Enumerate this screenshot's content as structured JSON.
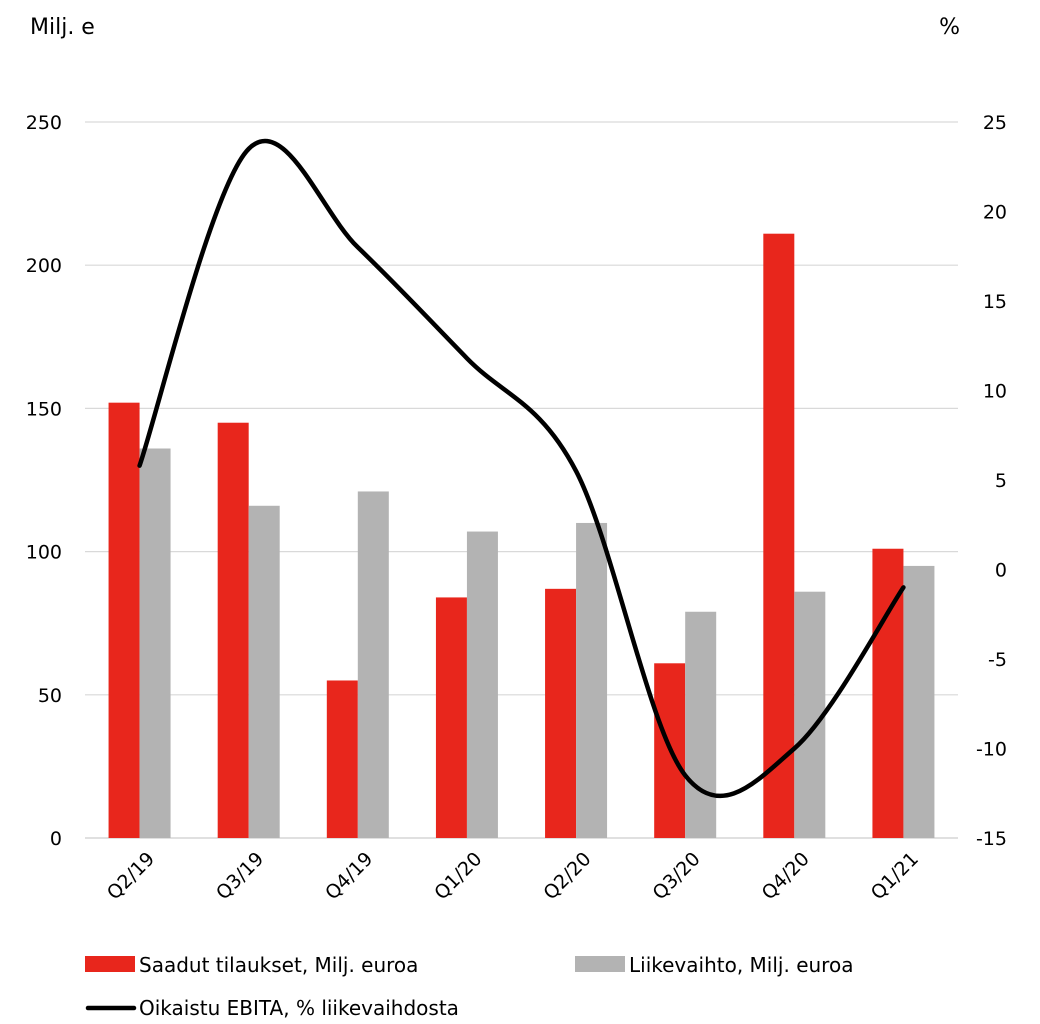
{
  "chart_data": {
    "type": "bar",
    "categories": [
      "Q2/19",
      "Q3/19",
      "Q4/19",
      "Q1/20",
      "Q2/20",
      "Q3/20",
      "Q4/20",
      "Q1/21"
    ],
    "series": [
      {
        "name": "Saadut tilaukset, Milj. euroa",
        "kind": "bar",
        "axis": "left",
        "color": "#e8261c",
        "values": [
          152,
          145,
          55,
          84,
          87,
          61,
          211,
          101
        ]
      },
      {
        "name": "Liikevaihto, Milj. euroa",
        "kind": "bar",
        "axis": "left",
        "color": "#b3b3b3",
        "values": [
          136,
          116,
          121,
          107,
          110,
          79,
          86,
          95
        ]
      },
      {
        "name": "Oikaistu EBITA, % liikevaihdosta",
        "kind": "line",
        "axis": "right",
        "color": "#000000",
        "values": [
          5.8,
          23.5,
          18.0,
          11.8,
          5.5,
          -11.5,
          -10.0,
          -1.0
        ]
      }
    ],
    "left_axis": {
      "label": "Milj. e",
      "ylim": [
        0,
        250
      ],
      "ticks": [
        0,
        50,
        100,
        150,
        200,
        250
      ]
    },
    "right_axis": {
      "label": "%",
      "ylim": [
        -15,
        25
      ],
      "ticks": [
        -15,
        -10,
        -5,
        0,
        5,
        10,
        15,
        20,
        25
      ]
    },
    "grid": true,
    "legend_position": "bottom"
  }
}
